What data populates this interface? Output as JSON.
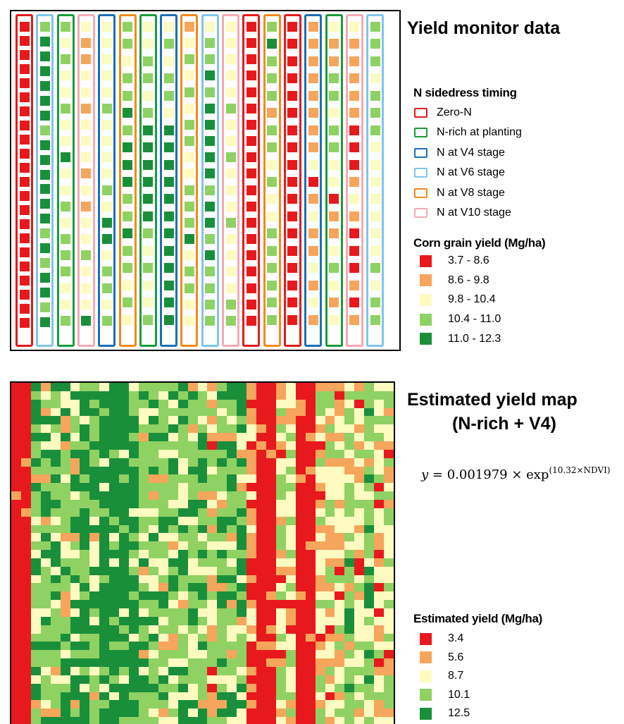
{
  "top_panel": {
    "title": "Yield monitor data",
    "timing_legend": {
      "title": "N sidedress timing",
      "items": [
        {
          "label": "Zero-N",
          "color": "#e31a1c"
        },
        {
          "label": "N-rich at planting",
          "color": "#1a9b3c"
        },
        {
          "label": "N at V4 stage",
          "color": "#1b6fb5"
        },
        {
          "label": "N at V6 stage",
          "color": "#7fc4ea"
        },
        {
          "label": "N at V8 stage",
          "color": "#f08a1d"
        },
        {
          "label": "N at V10 stage",
          "color": "#f4a9b4"
        }
      ]
    },
    "yield_legend": {
      "title": "Corn grain yield (Mg/ha)",
      "items": [
        {
          "label": "3.7 - 8.6",
          "color": "#e8191c"
        },
        {
          "label": "8.6 - 9.8",
          "color": "#f6a55c"
        },
        {
          "label": "9.8 - 10.4",
          "color": "#fdfbc0"
        },
        {
          "label": "10.4 - 11.0",
          "color": "#8fd163"
        },
        {
          "label": "11.0 - 12.3",
          "color": "#1a8f3a"
        }
      ]
    },
    "strips": [
      {
        "treatment": 0,
        "plots": [
          0,
          0,
          0,
          0,
          0,
          0,
          0,
          0,
          0,
          0,
          0,
          0,
          0,
          0,
          0,
          0,
          0,
          0,
          0,
          0,
          0,
          0
        ]
      },
      {
        "treatment": 3,
        "plots": [
          3,
          4,
          4,
          4,
          4,
          4,
          4,
          3,
          4,
          4,
          4,
          4,
          4,
          4,
          3,
          4,
          3,
          4,
          4,
          3,
          4
        ]
      },
      {
        "treatment": 1,
        "plots": [
          3,
          2,
          3,
          2,
          2,
          3,
          2,
          2,
          4,
          2,
          2,
          3,
          2,
          3,
          3,
          3,
          2,
          2,
          3
        ]
      },
      {
        "treatment": 5,
        "plots": [
          2,
          1,
          1,
          2,
          2,
          1,
          2,
          2,
          2,
          1,
          2,
          1,
          2,
          2,
          3,
          2,
          2,
          2,
          4
        ]
      },
      {
        "treatment": 2,
        "plots": [
          2,
          2,
          2,
          2,
          2,
          3,
          2,
          2,
          2,
          2,
          3,
          2,
          4,
          4,
          2,
          3,
          3,
          2,
          3
        ]
      },
      {
        "treatment": 4,
        "plots": [
          3,
          3,
          2,
          3,
          3,
          4,
          3,
          4,
          4,
          4,
          3,
          3,
          4,
          3,
          3,
          2,
          3,
          2
        ]
      },
      {
        "treatment": 1,
        "plots": [
          2,
          2,
          3,
          3,
          2,
          3,
          4,
          4,
          4,
          4,
          4,
          4,
          3,
          2,
          3,
          2,
          2,
          3
        ]
      },
      {
        "treatment": 2,
        "plots": [
          2,
          3,
          2,
          3,
          3,
          2,
          4,
          4,
          4,
          4,
          4,
          4,
          4,
          4,
          4,
          4,
          4,
          4
        ]
      },
      {
        "treatment": 4,
        "plots": [
          1,
          2,
          3,
          2,
          3,
          2,
          3,
          3,
          2,
          2,
          3,
          3,
          3,
          4,
          2,
          3,
          3,
          2,
          2
        ]
      },
      {
        "treatment": 3,
        "plots": [
          2,
          3,
          3,
          4,
          3,
          4,
          4,
          4,
          4,
          4,
          3,
          4,
          4,
          3,
          4,
          3,
          3,
          3,
          3
        ]
      },
      {
        "treatment": 5,
        "plots": [
          2,
          2,
          2,
          2,
          2,
          3,
          2,
          2,
          3,
          2,
          2,
          2,
          3,
          2,
          2,
          2,
          2,
          3,
          3
        ]
      },
      {
        "treatment": 0,
        "plots": [
          0,
          0,
          0,
          0,
          0,
          0,
          0,
          0,
          0,
          0,
          0,
          0,
          0,
          0,
          0,
          0,
          0,
          0,
          0
        ]
      },
      {
        "treatment": 4,
        "plots": [
          3,
          4,
          3,
          3,
          3,
          1,
          3,
          3,
          2,
          3,
          2,
          2,
          3,
          3,
          3,
          3,
          3,
          3
        ]
      },
      {
        "treatment": 0,
        "plots": [
          0,
          0,
          0,
          0,
          0,
          0,
          0,
          0,
          0,
          0,
          0,
          0,
          0,
          0,
          0,
          0,
          0,
          0
        ]
      },
      {
        "treatment": 2,
        "plots": [
          1,
          1,
          1,
          1,
          1,
          1,
          1,
          1,
          2,
          0,
          1,
          2,
          1,
          1,
          2,
          1,
          2,
          1
        ]
      },
      {
        "treatment": 1,
        "plots": [
          2,
          1,
          1,
          3,
          3,
          2,
          3,
          3,
          2,
          2,
          0,
          1,
          1,
          2,
          3,
          2,
          1,
          2
        ]
      },
      {
        "treatment": 5,
        "plots": [
          2,
          1,
          1,
          1,
          1,
          1,
          0,
          0,
          0,
          1,
          2,
          1,
          0,
          0,
          0,
          1,
          0,
          1
        ]
      },
      {
        "treatment": 3,
        "plots": [
          3,
          3,
          3,
          2,
          3,
          3,
          3,
          2,
          2,
          2,
          2,
          2,
          2,
          2,
          3,
          2,
          3,
          3
        ]
      }
    ]
  },
  "bottom_panel": {
    "title_line1": "Estimated yield map",
    "title_line2": "(N-rich + V4)",
    "equation": {
      "lhs": "y",
      "rhs": "= 0.001979 × exp",
      "exponent": "(10.32×NDVI)"
    },
    "legend": {
      "title": "Estimated yield (Mg/ha)",
      "items": [
        {
          "label": "3.4",
          "color": "#e8191c"
        },
        {
          "label": "5.6",
          "color": "#f6a55c"
        },
        {
          "label": "8.7",
          "color": "#fdfbc0"
        },
        {
          "label": "10.1",
          "color": "#8fd163"
        },
        {
          "label": "12.5",
          "color": "#1a8f3a"
        }
      ]
    },
    "raster": {
      "columns": 39,
      "rows": 41,
      "column_profile": [
        0,
        0,
        3,
        3,
        3,
        3,
        3,
        4,
        3,
        4,
        4,
        4,
        4,
        3,
        3,
        3,
        3,
        3,
        3,
        3,
        2,
        3,
        3,
        3,
        1,
        0,
        0,
        2,
        2,
        0,
        0,
        2,
        2,
        2,
        3,
        2,
        3,
        2,
        2
      ],
      "seed": 7
    }
  }
}
